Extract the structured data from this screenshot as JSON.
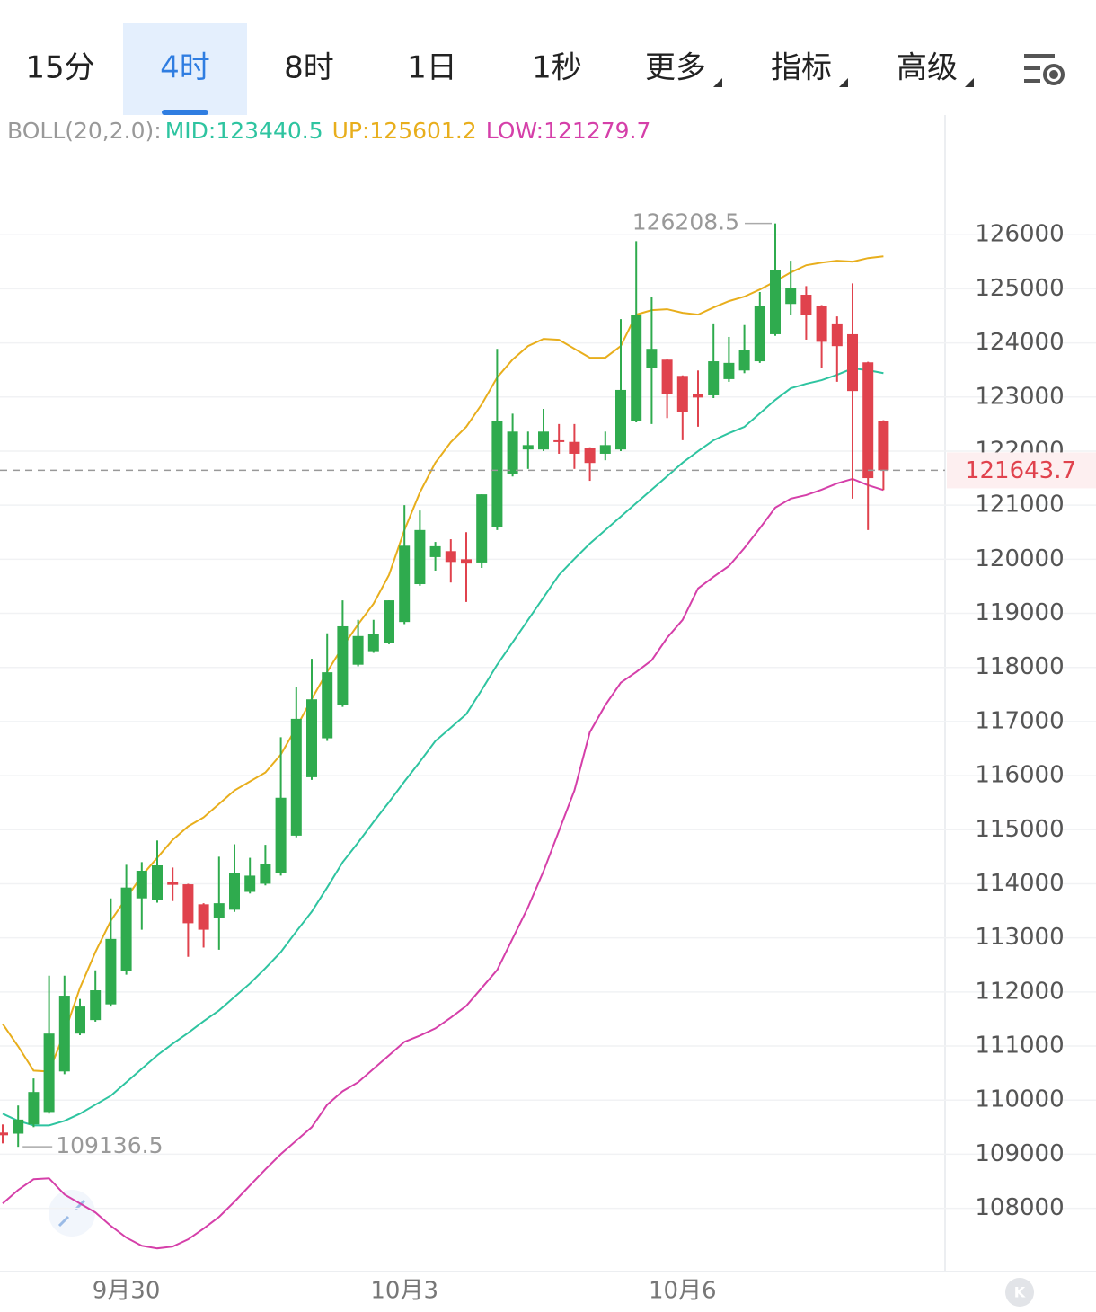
{
  "tabs": [
    "15分",
    "4时",
    "8时",
    "1日",
    "1秒",
    "更多",
    "指标",
    "高级"
  ],
  "active_tab": 1,
  "chart_data": {
    "type": "candlestick",
    "indicator": "BOLL(20,2.0):",
    "categories": [
      null,
      null,
      null,
      null,
      null,
      null,
      null,
      null,
      "9月30",
      null,
      null,
      null,
      null,
      null,
      null,
      null,
      null,
      null,
      null,
      null,
      null,
      null,
      null,
      null,
      null,
      null,
      "10月3",
      null,
      null,
      null,
      null,
      null,
      null,
      null,
      null,
      null,
      null,
      null,
      null,
      null,
      null,
      null,
      null,
      null,
      "10月6",
      null,
      null,
      null,
      null,
      null,
      null,
      null,
      null,
      null,
      null,
      null,
      null,
      null
    ],
    "open": [
      109400,
      109380,
      109550,
      109780,
      110530,
      111230,
      111480,
      111770,
      112380,
      113730,
      113700,
      114030,
      113990,
      113620,
      113370,
      113520,
      113850,
      114000,
      114200,
      114890,
      115970,
      116690,
      117300,
      118050,
      118300,
      118460,
      118840,
      119540,
      120040,
      120150,
      120000,
      119940,
      120590,
      121580,
      122030,
      122030,
      122200,
      122170,
      122060,
      121950,
      122030,
      122560,
      123530,
      123690,
      123390,
      123060,
      123030,
      123330,
      123490,
      123660,
      124160,
      124720,
      124890,
      124690,
      124360,
      124160,
      123640,
      122560
    ],
    "high": [
      109550,
      109900,
      110400,
      112300,
      112300,
      111870,
      112400,
      113730,
      114350,
      114400,
      114800,
      114300,
      114000,
      113640,
      114500,
      114730,
      114480,
      114720,
      116710,
      117630,
      118160,
      118630,
      119240,
      118880,
      118880,
      119240,
      121000,
      120900,
      120320,
      120370,
      120500,
      121200,
      123890,
      122690,
      122360,
      122780,
      122500,
      122500,
      122070,
      122360,
      124440,
      125880,
      124850,
      123700,
      123400,
      123490,
      124360,
      124110,
      124330,
      124940,
      126208.5,
      125520,
      125050,
      124700,
      124490,
      125100,
      123650,
      122570
    ],
    "low": [
      109200,
      109136.5,
      109500,
      109750,
      110480,
      111200,
      111450,
      111730,
      112320,
      113150,
      113650,
      113680,
      112650,
      112820,
      112780,
      113480,
      113820,
      113970,
      114150,
      114860,
      115920,
      116640,
      117270,
      118020,
      118270,
      118430,
      118800,
      119510,
      119790,
      119570,
      119210,
      119840,
      120540,
      121530,
      121670,
      122000,
      121950,
      121670,
      121450,
      121830,
      122000,
      122530,
      122500,
      122610,
      122200,
      122450,
      122980,
      123280,
      123440,
      123630,
      124130,
      124520,
      124060,
      123530,
      123280,
      121120,
      120540,
      121280
    ],
    "close": [
      109350,
      109640,
      110150,
      111230,
      111930,
      111730,
      112030,
      112980,
      113930,
      114240,
      114340,
      113980,
      113270,
      113150,
      113640,
      114200,
      114150,
      114360,
      115590,
      117050,
      117410,
      117910,
      118760,
      118580,
      118610,
      119240,
      120250,
      120540,
      120240,
      119950,
      119920,
      121200,
      122560,
      122360,
      122110,
      122360,
      122170,
      121950,
      121780,
      122110,
      123130,
      124520,
      123890,
      123060,
      122730,
      122990,
      123660,
      123630,
      123860,
      124690,
      125350,
      125020,
      124520,
      124020,
      123940,
      123110,
      121500,
      121643.7
    ],
    "up_color": "#2fab4e",
    "down_color": "#e0424d",
    "series": [
      {
        "label": "MID:123440.5",
        "color": "#2ec4a0",
        "values": [
          109749,
          109616,
          109533,
          109533,
          109616,
          109749,
          109915,
          110081,
          110330,
          110579,
          110828,
          111043,
          111243,
          111458,
          111658,
          111907,
          112156,
          112438,
          112737,
          113118,
          113484,
          113932,
          114397,
          114762,
          115144,
          115509,
          115891,
          116256,
          116638,
          116887,
          117136,
          117584,
          118049,
          118464,
          118879,
          119294,
          119709,
          120007,
          120290,
          120539,
          120788,
          121037,
          121286,
          121535,
          121784,
          121999,
          122199,
          122331,
          122448,
          122697,
          122946,
          123161,
          123244,
          123311,
          123410,
          123527,
          123494,
          123440.5
        ]
      },
      {
        "label": "UP:125601.2",
        "color": "#e8ae1c",
        "values": [
          111409,
          110994,
          110545,
          110528,
          111243,
          112073,
          112737,
          113318,
          113733,
          114148,
          114480,
          114812,
          115061,
          115227,
          115476,
          115725,
          115891,
          116057,
          116389,
          116887,
          117418,
          117916,
          118381,
          118796,
          119177,
          119709,
          120539,
          121236,
          121784,
          122165,
          122448,
          122863,
          123361,
          123693,
          123942,
          124074,
          124058,
          123892,
          123726,
          123726,
          123942,
          124523,
          124606,
          124623,
          124556,
          124523,
          124655,
          124772,
          124855,
          124987,
          125137,
          125303,
          125436,
          125485,
          125519,
          125502,
          125568,
          125601.2
        ]
      },
      {
        "label": "LOW:121279.7",
        "color": "#d53fa9",
        "values": [
          108089,
          108338,
          108537,
          108554,
          108255,
          108089,
          107923,
          107674,
          107458,
          107308,
          107259,
          107292,
          107425,
          107624,
          107840,
          108122,
          108421,
          108719,
          109002,
          109251,
          109500,
          109915,
          110164,
          110330,
          110579,
          110828,
          111077,
          111193,
          111326,
          111525,
          111741,
          112073,
          112405,
          112986,
          113567,
          114231,
          114978,
          115725,
          116804,
          117302,
          117717,
          117916,
          118132,
          118547,
          118879,
          119460,
          119675,
          119875,
          120207,
          120572,
          120954,
          121120,
          121186,
          121286,
          121402,
          121485,
          121369,
          121279.7
        ]
      }
    ],
    "ylim": [
      106830,
      128180
    ],
    "yticks": [
      108000,
      109000,
      110000,
      111000,
      112000,
      113000,
      114000,
      115000,
      116000,
      117000,
      118000,
      119000,
      120000,
      121000,
      122000,
      123000,
      124000,
      125000,
      126000
    ],
    "grid": true
  }
}
